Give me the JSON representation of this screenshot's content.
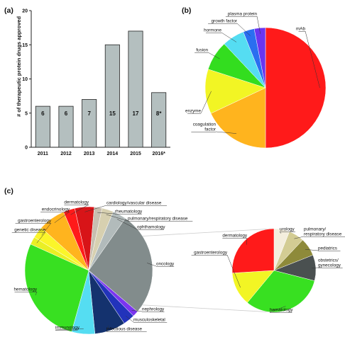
{
  "chart_data": [
    {
      "panel": "(a)",
      "type": "bar",
      "categories": [
        "2011",
        "2012",
        "2013",
        "2014",
        "2015",
        "2016*"
      ],
      "values": [
        6,
        6,
        7,
        15,
        17,
        8
      ],
      "value_labels": [
        "6",
        "6",
        "7",
        "15",
        "17",
        "8*"
      ],
      "title": "",
      "xlabel": "",
      "ylabel": "# of therapeutic protein drugs approved",
      "ylim": [
        0,
        20
      ],
      "yticks": [
        0,
        5,
        10,
        15,
        20
      ],
      "grid": false,
      "colors": {
        "bar": "#b4bfbf",
        "edge": "#222222"
      }
    },
    {
      "panel": "(b)",
      "type": "pie",
      "labels": [
        "mAb",
        "coagulation factor",
        "enzyme",
        "fusion",
        "hormone",
        "growth factor",
        "plasma protein"
      ],
      "display_labels": [
        [
          "mAb"
        ],
        [
          "coagulation",
          "factor"
        ],
        [
          "enzyme"
        ],
        [
          "fusion"
        ],
        [
          "hormone"
        ],
        [
          "growth factor"
        ],
        [
          "plasma protein"
        ]
      ],
      "values": [
        50,
        18,
        12,
        8,
        6,
        3,
        3
      ],
      "colors": [
        "#ff1a1a",
        "#ffb41e",
        "#f2f524",
        "#33dd1f",
        "#55ddf2",
        "#2a6ef0",
        "#6a35f0"
      ]
    },
    {
      "panel": "(c)",
      "type": "pie",
      "labels": [
        "oncology",
        "nephrology",
        "musculoskeletal",
        "infectious disease",
        "immunology",
        "hematology",
        "genetic disease",
        "gastroenterology",
        "endocrinology",
        "dermatology",
        "cardiology/vascular disease",
        "rheumatology",
        "pulmonary/respiratory disease",
        "ophthamology"
      ],
      "values": [
        27,
        1.5,
        3,
        8,
        6,
        28,
        2,
        3,
        7,
        3,
        5,
        2,
        3,
        3.5
      ],
      "colors": [
        "#828c8c",
        "#7b35f0",
        "#2233bb",
        "#14326e",
        "#55ddf2",
        "#38e021",
        "#eaef24",
        "#fbf52a",
        "#ffb41e",
        "#ff1a1a",
        "#d81418",
        "#c8bfb0",
        "#d7d0b0",
        "#b2bbbb"
      ]
    },
    {
      "panel": "(c) inset",
      "type": "pie",
      "labels": [
        "urology",
        "pulmonary/respiratory disease",
        "pediatrics",
        "obstetrics/gynecology",
        "hematology",
        "gastroenterology",
        "dermatology"
      ],
      "display_labels": [
        [
          "urology"
        ],
        [
          "pulmonary/",
          "respiratory disease"
        ],
        [
          "pediatrics"
        ],
        [
          "obstetrics/",
          "gynecology"
        ],
        [
          "hematology"
        ],
        [
          "gastroenterology"
        ],
        [
          "dermatology"
        ]
      ],
      "values": [
        6,
        6,
        7,
        10,
        32,
        13,
        26
      ],
      "colors": [
        "#f4eedd",
        "#d3cc94",
        "#8e8a3a",
        "#4a5050",
        "#38e021",
        "#f2f524",
        "#ff1a1a"
      ]
    }
  ]
}
